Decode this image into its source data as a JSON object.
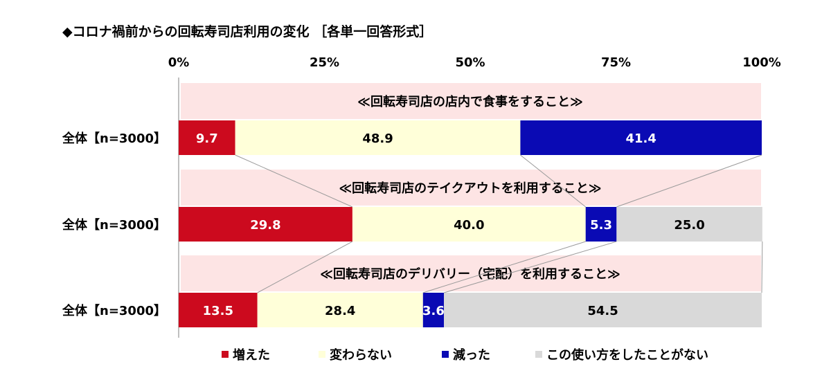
{
  "title": "◆コロナ禍前からの回転寿司店利用の変化 ［各単一回答形式］",
  "chart_data": {
    "type": "bar",
    "orientation": "horizontal",
    "stacked": "percent",
    "xlim": [
      0,
      100
    ],
    "x_ticks": [
      "0%",
      "25%",
      "50%",
      "75%",
      "100%"
    ],
    "tick_values": [
      0,
      25,
      50,
      75,
      100
    ],
    "legend_position": "bottom",
    "series": [
      {
        "name": "増えた",
        "color": "#cc0a1e",
        "text_color": "#ffffff"
      },
      {
        "name": "変わらない",
        "color": "#ffffd9",
        "text_color": "#000000"
      },
      {
        "name": "減った",
        "color": "#0a0ab4",
        "text_color": "#ffffff"
      },
      {
        "name": "この使い方をしたことがない",
        "color": "#d9d9d9",
        "text_color": "#000000"
      }
    ],
    "groups": [
      {
        "section_label": "≪回転寿司店の店内で食事をすること≫",
        "category": "全体【n=3000】",
        "values": [
          9.7,
          48.9,
          41.4,
          null
        ],
        "labels": [
          "9.7",
          "48.9",
          "41.4",
          ""
        ]
      },
      {
        "section_label": "≪回転寿司店のテイクアウトを利用すること≫",
        "category": "全体【n=3000】",
        "values": [
          29.8,
          40.0,
          5.3,
          25.0
        ],
        "labels": [
          "29.8",
          "40.0",
          "5.3",
          "25.0"
        ]
      },
      {
        "section_label": "≪回転寿司店のデリバリー（宅配）を利用すること≫",
        "category": "全体【n=3000】",
        "values": [
          13.5,
          28.4,
          3.6,
          54.5
        ],
        "labels": [
          "13.5",
          "28.4",
          "3.6",
          "54.5"
        ]
      }
    ],
    "section_band_color": "#fde4e4"
  }
}
